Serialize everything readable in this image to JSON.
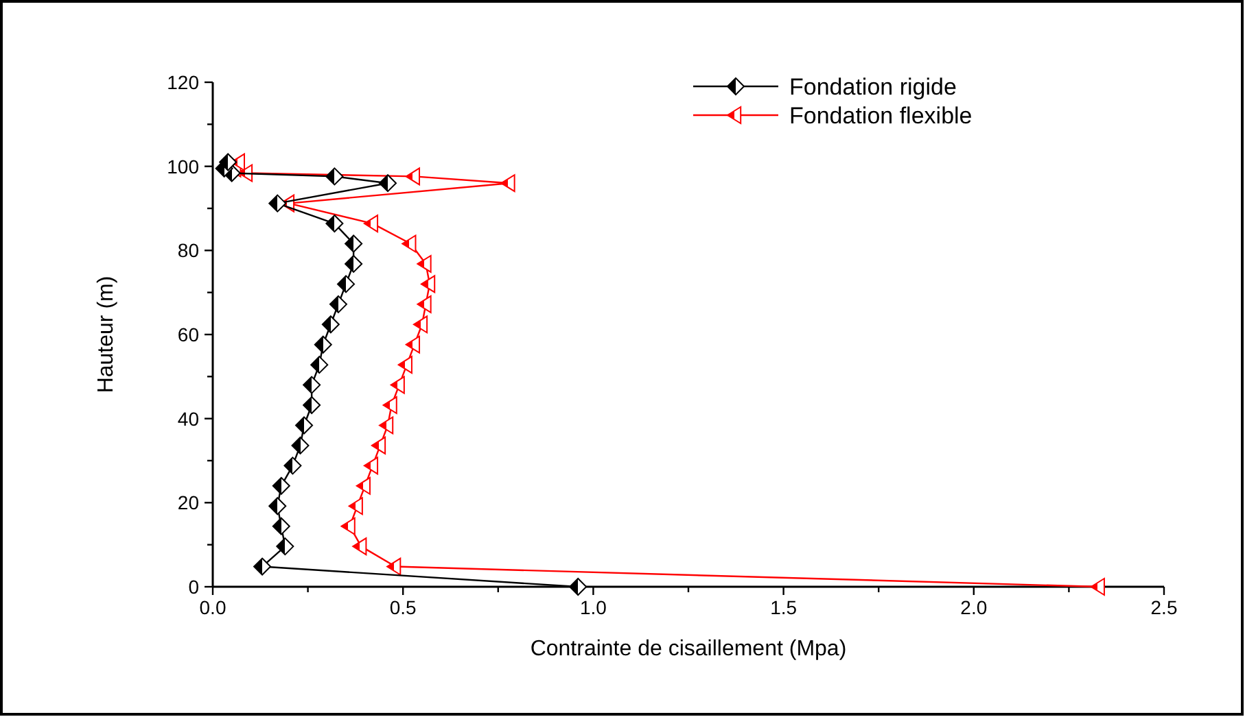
{
  "chart_data": {
    "type": "line",
    "xlabel": "Contrainte de cisaillement (Mpa)",
    "ylabel": "Hauteur (m)",
    "xlim": [
      0,
      2.5
    ],
    "xticks": [
      {
        "value": 0,
        "label": "0.0"
      },
      {
        "value": 0.25,
        "label": null
      },
      {
        "value": 0.5,
        "label": "0.5"
      },
      {
        "value": 0.75,
        "label": null
      },
      {
        "value": 1,
        "label": "1.0"
      },
      {
        "value": 1.25,
        "label": null
      },
      {
        "value": 1.5,
        "label": "1.5"
      },
      {
        "value": 1.75,
        "label": null
      },
      {
        "value": 2,
        "label": "2.0"
      },
      {
        "value": 2.25,
        "label": null
      },
      {
        "value": 2.5,
        "label": "2.5"
      }
    ],
    "ylim": [
      0,
      120
    ],
    "yticks": [
      0,
      {
        "value": 10,
        "label": null
      },
      20,
      {
        "value": 30,
        "label": null
      },
      40,
      {
        "value": 50,
        "label": null
      },
      60,
      {
        "value": 70,
        "label": null
      },
      80,
      {
        "value": 90,
        "label": null
      },
      100,
      {
        "value": 110,
        "label": null
      },
      120
    ],
    "grid": false,
    "legend": "top right",
    "line_style": "solid",
    "series": [
      {
        "name": "Fondation rigide",
        "color": "#000000",
        "marker": "diamond",
        "x": [
          0.96,
          0.13,
          0.19,
          0.18,
          0.17,
          0.18,
          0.21,
          0.23,
          0.24,
          0.26,
          0.26,
          0.28,
          0.29,
          0.31,
          0.33,
          0.35,
          0.37,
          0.37,
          0.32,
          0.17,
          0.46,
          0.32,
          0.05,
          0.03,
          0.04
        ],
        "values": [
          0,
          4.8,
          9.6,
          14.4,
          19.2,
          24,
          28.8,
          33.6,
          38.4,
          43.2,
          48,
          52.8,
          57.6,
          62.4,
          67.2,
          72,
          76.8,
          81.6,
          86.4,
          91.2,
          96,
          97.6,
          98.4,
          99.5,
          101
        ]
      },
      {
        "name": "Fondation flexible",
        "color": "#ff0000",
        "marker": "triangle",
        "x": [
          2.33,
          0.48,
          0.39,
          0.36,
          0.38,
          0.4,
          0.42,
          0.44,
          0.46,
          0.47,
          0.49,
          0.51,
          0.53,
          0.55,
          0.56,
          0.57,
          0.56,
          0.52,
          0.42,
          0.2,
          0.78,
          0.53,
          0.09,
          0.06,
          0.07
        ],
        "values": [
          0,
          4.8,
          9.6,
          14.4,
          19.2,
          24,
          28.8,
          33.6,
          38.4,
          43.2,
          48,
          52.8,
          57.6,
          62.4,
          67.2,
          72,
          76.8,
          81.6,
          86.4,
          91.2,
          96,
          97.6,
          98.4,
          99.5,
          101
        ]
      }
    ]
  }
}
